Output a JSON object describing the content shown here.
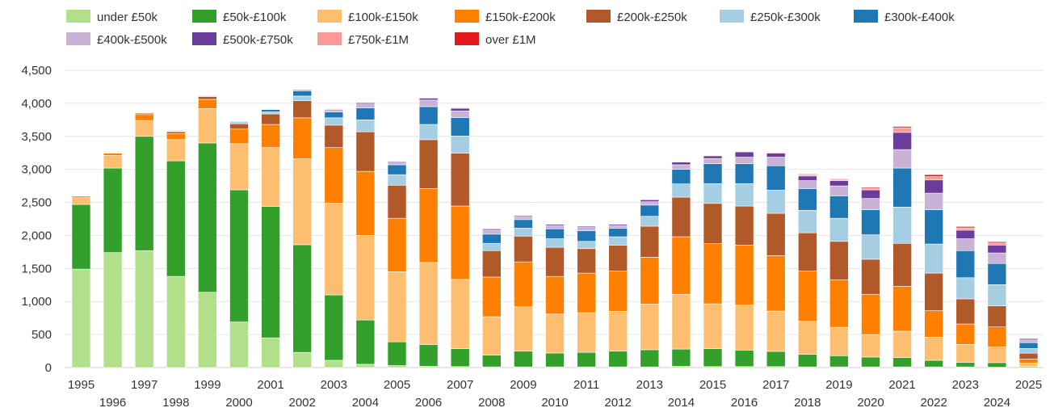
{
  "chart_data": {
    "type": "bar",
    "stacked": true,
    "title": "",
    "xlabel": "",
    "ylabel": "",
    "ylim": [
      0,
      4500
    ],
    "yticks": [
      0,
      500,
      1000,
      1500,
      2000,
      2500,
      3000,
      3500,
      4000,
      4500
    ],
    "ytick_labels": [
      "0",
      "500",
      "1,000",
      "1,500",
      "2,000",
      "2,500",
      "3,000",
      "3,500",
      "4,000",
      "4,500"
    ],
    "grid": true,
    "legend_position": "top",
    "categories": [
      "1995",
      "1996",
      "1997",
      "1998",
      "1999",
      "2000",
      "2001",
      "2002",
      "2003",
      "2004",
      "2005",
      "2006",
      "2007",
      "2008",
      "2009",
      "2010",
      "2011",
      "2012",
      "2013",
      "2014",
      "2015",
      "2016",
      "2017",
      "2018",
      "2019",
      "2020",
      "2021",
      "2022",
      "2023",
      "2024",
      "2025"
    ],
    "series": [
      {
        "name": "under £50k",
        "color": "#b2df8a",
        "values": [
          1490,
          1740,
          1770,
          1380,
          1140,
          690,
          450,
          230,
          110,
          50,
          30,
          20,
          15,
          10,
          10,
          10,
          10,
          10,
          10,
          20,
          15,
          15,
          15,
          10,
          10,
          10,
          10,
          10,
          10,
          5,
          3
        ]
      },
      {
        "name": "£50k-£100k",
        "color": "#33a02c",
        "values": [
          980,
          1280,
          1730,
          1750,
          2260,
          2000,
          1990,
          1630,
          990,
          670,
          360,
          330,
          270,
          180,
          240,
          210,
          220,
          240,
          260,
          260,
          270,
          250,
          230,
          190,
          170,
          150,
          140,
          100,
          70,
          70,
          15
        ]
      },
      {
        "name": "£100k-£150k",
        "color": "#fdbf6f",
        "values": [
          100,
          190,
          240,
          320,
          520,
          700,
          890,
          1300,
          1390,
          1280,
          1060,
          1240,
          1050,
          580,
          670,
          590,
          600,
          600,
          690,
          830,
          680,
          680,
          610,
          500,
          430,
          340,
          400,
          350,
          270,
          240,
          50
        ]
      },
      {
        "name": "£150k-£200k",
        "color": "#ff7f00",
        "values": [
          25,
          35,
          90,
          90,
          140,
          220,
          350,
          620,
          840,
          970,
          810,
          1120,
          1110,
          600,
          680,
          570,
          600,
          610,
          710,
          870,
          910,
          910,
          840,
          760,
          720,
          610,
          680,
          400,
          310,
          300,
          60
        ]
      },
      {
        "name": "£200k-£250k",
        "color": "#b15928",
        "values": [
          5,
          10,
          20,
          30,
          40,
          80,
          160,
          260,
          340,
          600,
          500,
          740,
          800,
          400,
          390,
          440,
          370,
          390,
          470,
          600,
          610,
          590,
          640,
          580,
          580,
          530,
          650,
          570,
          380,
          320,
          90
        ]
      },
      {
        "name": "£250k-£300k",
        "color": "#a6cee3",
        "values": [
          2,
          4,
          8,
          10,
          12,
          20,
          30,
          70,
          110,
          180,
          160,
          230,
          260,
          110,
          120,
          130,
          110,
          130,
          150,
          200,
          300,
          340,
          350,
          340,
          350,
          370,
          550,
          440,
          320,
          320,
          70
        ]
      },
      {
        "name": "£300k-£400k",
        "color": "#1f78b4",
        "values": [
          2,
          4,
          5,
          10,
          10,
          15,
          35,
          80,
          90,
          180,
          150,
          270,
          280,
          140,
          130,
          150,
          160,
          130,
          170,
          220,
          300,
          300,
          370,
          330,
          340,
          380,
          590,
          520,
          410,
          320,
          90
        ]
      },
      {
        "name": "£400k-£500k",
        "color": "#cab2d6",
        "values": [
          1,
          2,
          3,
          5,
          5,
          5,
          10,
          20,
          40,
          60,
          40,
          100,
          100,
          60,
          40,
          50,
          50,
          40,
          50,
          70,
          80,
          100,
          130,
          120,
          150,
          170,
          280,
          250,
          180,
          160,
          40
        ]
      },
      {
        "name": "£500k-£750k",
        "color": "#6a3d9a",
        "values": [
          1,
          1,
          1,
          3,
          3,
          3,
          5,
          8,
          10,
          20,
          15,
          30,
          40,
          20,
          20,
          20,
          20,
          20,
          30,
          40,
          40,
          80,
          60,
          70,
          80,
          130,
          260,
          200,
          130,
          120,
          20
        ]
      },
      {
        "name": "£750k-£1M",
        "color": "#fb9a99",
        "values": [
          0,
          0,
          1,
          1,
          1,
          1,
          1,
          2,
          3,
          5,
          5,
          5,
          10,
          5,
          5,
          5,
          5,
          5,
          7,
          10,
          10,
          10,
          15,
          20,
          20,
          25,
          70,
          50,
          35,
          30,
          8
        ]
      },
      {
        "name": "over £1M",
        "color": "#e31a1c",
        "values": [
          0,
          0,
          1,
          1,
          1,
          0,
          0,
          1,
          1,
          2,
          2,
          3,
          4,
          2,
          2,
          2,
          2,
          2,
          3,
          5,
          5,
          5,
          5,
          10,
          10,
          15,
          20,
          30,
          20,
          20,
          5
        ]
      }
    ]
  }
}
